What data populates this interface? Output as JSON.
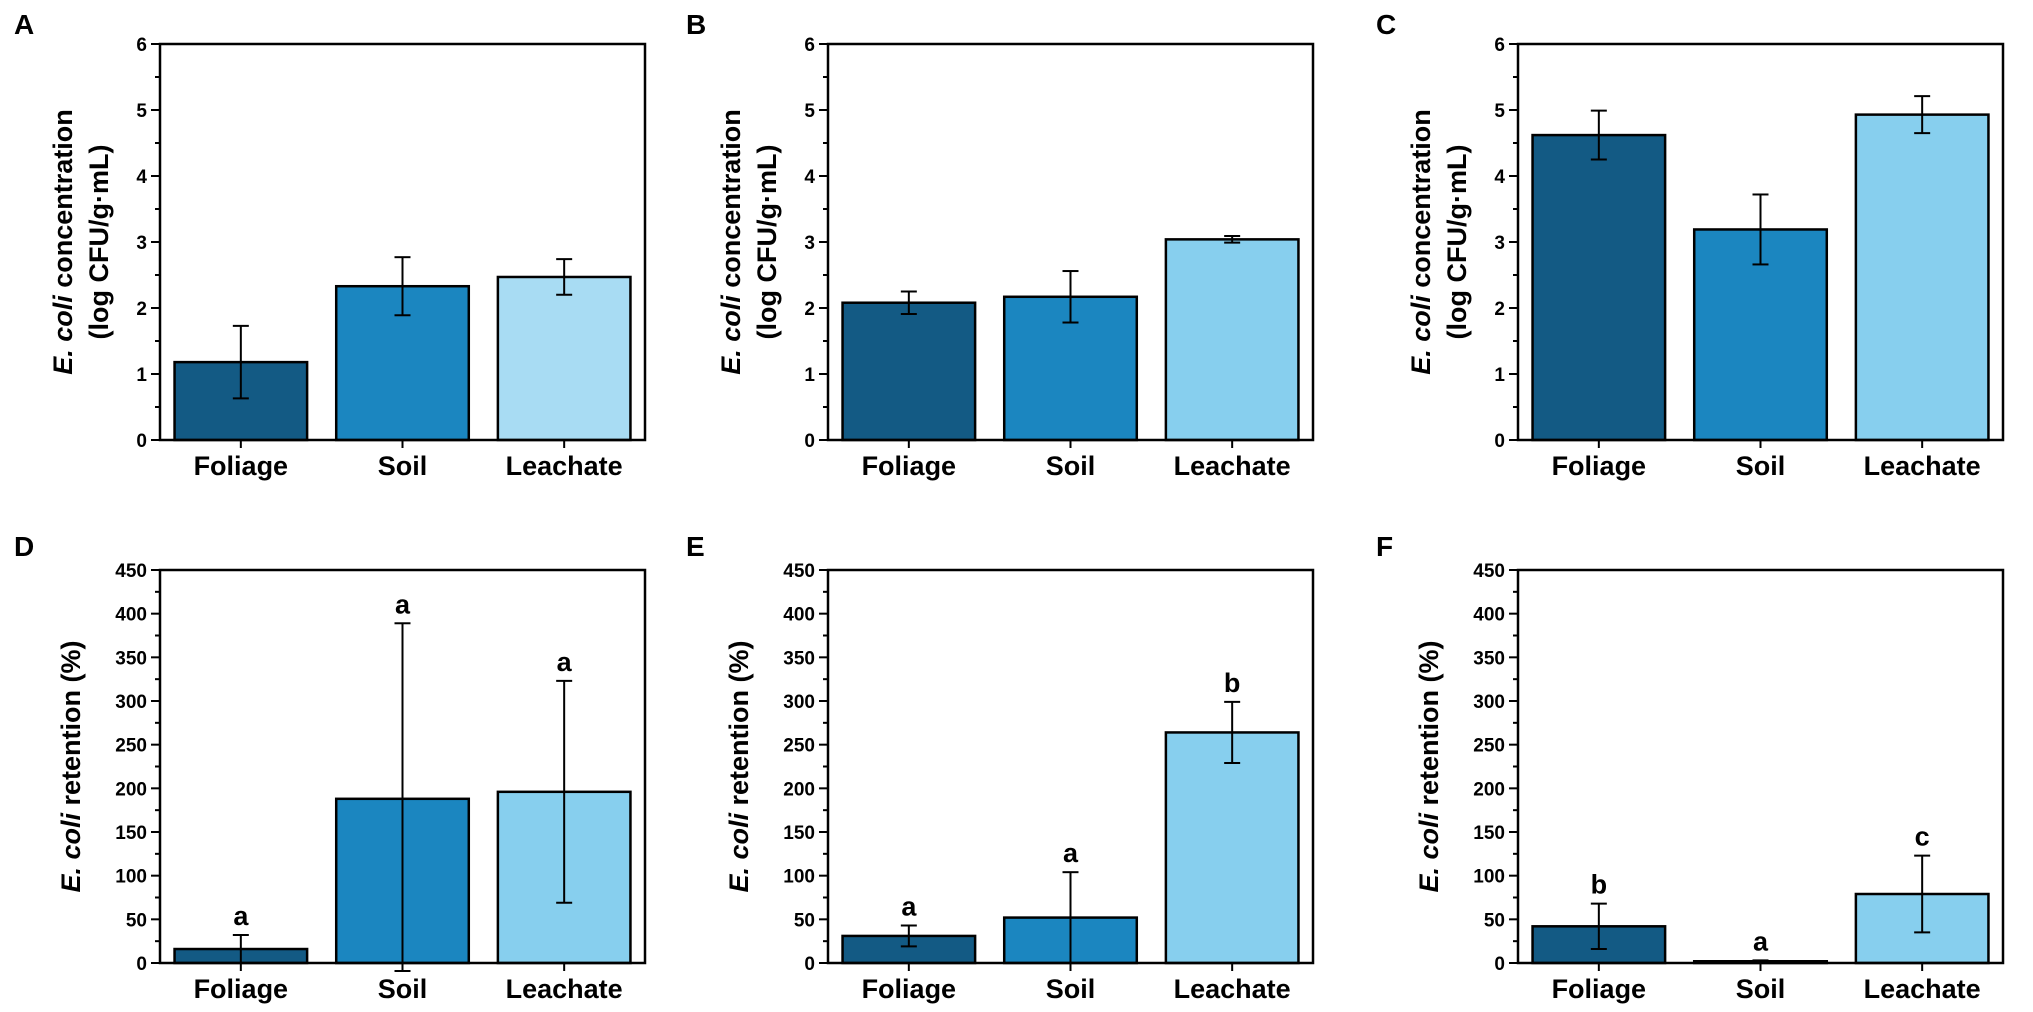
{
  "chart_data": [
    {
      "panel": "A",
      "type": "bar",
      "categories": [
        "Foliage",
        "Soil",
        "Leachate"
      ],
      "values": [
        1.18,
        2.33,
        2.47
      ],
      "errors": [
        0.55,
        0.44,
        0.27
      ],
      "ylabel_italic": "E. coli",
      "ylabel_rest": " concentration",
      "ylabel_line2": "(log CFU/g·mL)",
      "ylim": [
        0,
        6
      ],
      "yticks": [
        0,
        1,
        2,
        3,
        4,
        5,
        6
      ],
      "colors": [
        "#135a84",
        "#1b86c0",
        "#a8dcf3"
      ]
    },
    {
      "panel": "B",
      "type": "bar",
      "categories": [
        "Foliage",
        "Soil",
        "Leachate"
      ],
      "values": [
        2.08,
        2.17,
        3.04
      ],
      "errors": [
        0.17,
        0.39,
        0.05
      ],
      "ylabel_italic": "E. coli",
      "ylabel_rest": " concentration",
      "ylabel_line2": "(log CFU/g·mL)",
      "ylim": [
        0,
        6
      ],
      "yticks": [
        0,
        1,
        2,
        3,
        4,
        5,
        6
      ],
      "colors": [
        "#135a84",
        "#1b86c0",
        "#87cfee"
      ]
    },
    {
      "panel": "C",
      "type": "bar",
      "categories": [
        "Foliage",
        "Soil",
        "Leachate"
      ],
      "values": [
        4.62,
        3.19,
        4.93
      ],
      "errors": [
        0.37,
        0.53,
        0.28
      ],
      "ylabel_italic": "E. coli",
      "ylabel_rest": " concentration",
      "ylabel_line2": "(log CFU/g·mL)",
      "ylim": [
        0,
        6
      ],
      "yticks": [
        0,
        1,
        2,
        3,
        4,
        5,
        6
      ],
      "colors": [
        "#135a84",
        "#1b86c0",
        "#87cfee"
      ]
    },
    {
      "panel": "D",
      "type": "bar",
      "categories": [
        "Foliage",
        "Soil",
        "Leachate"
      ],
      "values": [
        16,
        188,
        196
      ],
      "errors": [
        16,
        201,
        127
      ],
      "sig_labels": [
        "a",
        "a",
        "a"
      ],
      "ylabel_italic": "E. coli",
      "ylabel_rest": " retention (%)",
      "ylim": [
        0,
        450
      ],
      "yticks": [
        0,
        50,
        100,
        150,
        200,
        250,
        300,
        350,
        400,
        450
      ],
      "colors": [
        "#135a84",
        "#1b86c0",
        "#87cfee"
      ]
    },
    {
      "panel": "E",
      "type": "bar",
      "categories": [
        "Foliage",
        "Soil",
        "Leachate"
      ],
      "values": [
        31,
        52,
        264
      ],
      "errors": [
        12,
        52,
        35
      ],
      "sig_labels": [
        "a",
        "a",
        "b"
      ],
      "ylabel_italic": "E. coli",
      "ylabel_rest": " retention (%)",
      "ylim": [
        0,
        450
      ],
      "yticks": [
        0,
        50,
        100,
        150,
        200,
        250,
        300,
        350,
        400,
        450
      ],
      "colors": [
        "#135a84",
        "#1b86c0",
        "#87cfee"
      ]
    },
    {
      "panel": "F",
      "type": "bar",
      "categories": [
        "Foliage",
        "Soil",
        "Leachate"
      ],
      "values": [
        42,
        2,
        79
      ],
      "errors": [
        26,
        1,
        44
      ],
      "sig_labels": [
        "b",
        "a",
        "c"
      ],
      "ylabel_italic": "E. coli",
      "ylabel_rest": " retention (%)",
      "ylim": [
        0,
        450
      ],
      "yticks": [
        0,
        50,
        100,
        150,
        200,
        250,
        300,
        350,
        400,
        450
      ],
      "colors": [
        "#135a84",
        "#1b86c0",
        "#87cfee"
      ]
    }
  ]
}
